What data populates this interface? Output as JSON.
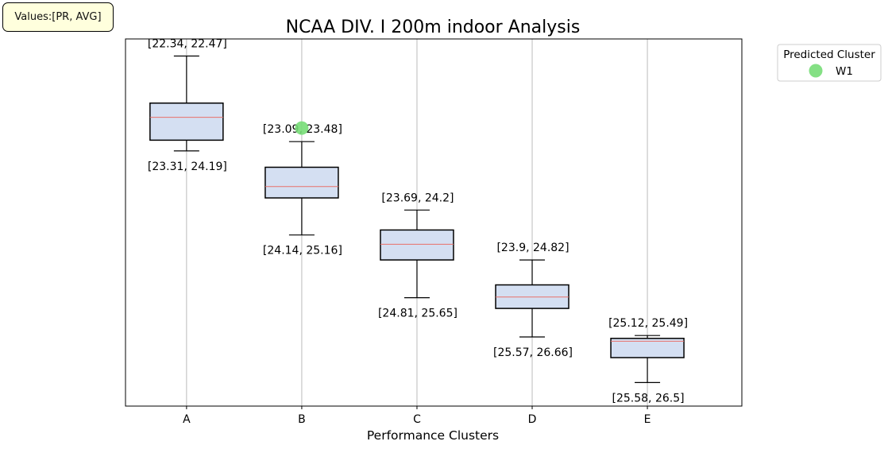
{
  "info_box": {
    "text": "Values:[PR, AVG]"
  },
  "chart_data": {
    "type": "box",
    "title": "NCAA DIV. I 200m indoor Analysis",
    "xlabel": "Performance Clusters",
    "ylabel": "",
    "yaxis_ticks_visible": false,
    "grid": "vertical",
    "ylim": [
      27.25,
      22.1
    ],
    "categories": [
      "A",
      "B",
      "C",
      "D",
      "E"
    ],
    "boxes": [
      {
        "category": "A",
        "whisker_top": 22.34,
        "q1": 23.0,
        "median": 23.2,
        "q3": 23.52,
        "whisker_bottom": 23.67,
        "top_label": "[22.34, 22.47]",
        "bottom_label": "[23.31, 24.19]"
      },
      {
        "category": "B",
        "whisker_top": 23.54,
        "q1": 23.9,
        "median": 24.17,
        "q3": 24.33,
        "whisker_bottom": 24.85,
        "top_label": "[23.09, 23.48]",
        "bottom_label": "[24.14, 25.16]"
      },
      {
        "category": "C",
        "whisker_top": 24.5,
        "q1": 24.78,
        "median": 24.98,
        "q3": 25.2,
        "whisker_bottom": 25.73,
        "top_label": "[23.69, 24.2]",
        "bottom_label": "[24.81, 25.65]"
      },
      {
        "category": "D",
        "whisker_top": 25.2,
        "q1": 25.55,
        "median": 25.72,
        "q3": 25.88,
        "whisker_bottom": 26.28,
        "top_label": "[23.9, 24.82]",
        "bottom_label": "[25.57, 26.66]"
      },
      {
        "category": "E",
        "whisker_top": 26.26,
        "q1": 26.3,
        "median": 26.34,
        "q3": 26.57,
        "whisker_bottom": 26.92,
        "top_label": "[25.12, 25.49]",
        "bottom_label": "[25.58, 26.5]"
      }
    ],
    "points": [
      {
        "name": "W1",
        "category": "B",
        "value": 23.35
      }
    ],
    "legend": {
      "title": "Predicted Cluster",
      "placement": "outside-top-right",
      "entries": [
        {
          "label": "W1"
        }
      ]
    },
    "colors": {
      "box_fill": "#d4dff2",
      "median": "#e8706a",
      "point": "#77dd77",
      "grid": "#bbbbbb"
    }
  }
}
